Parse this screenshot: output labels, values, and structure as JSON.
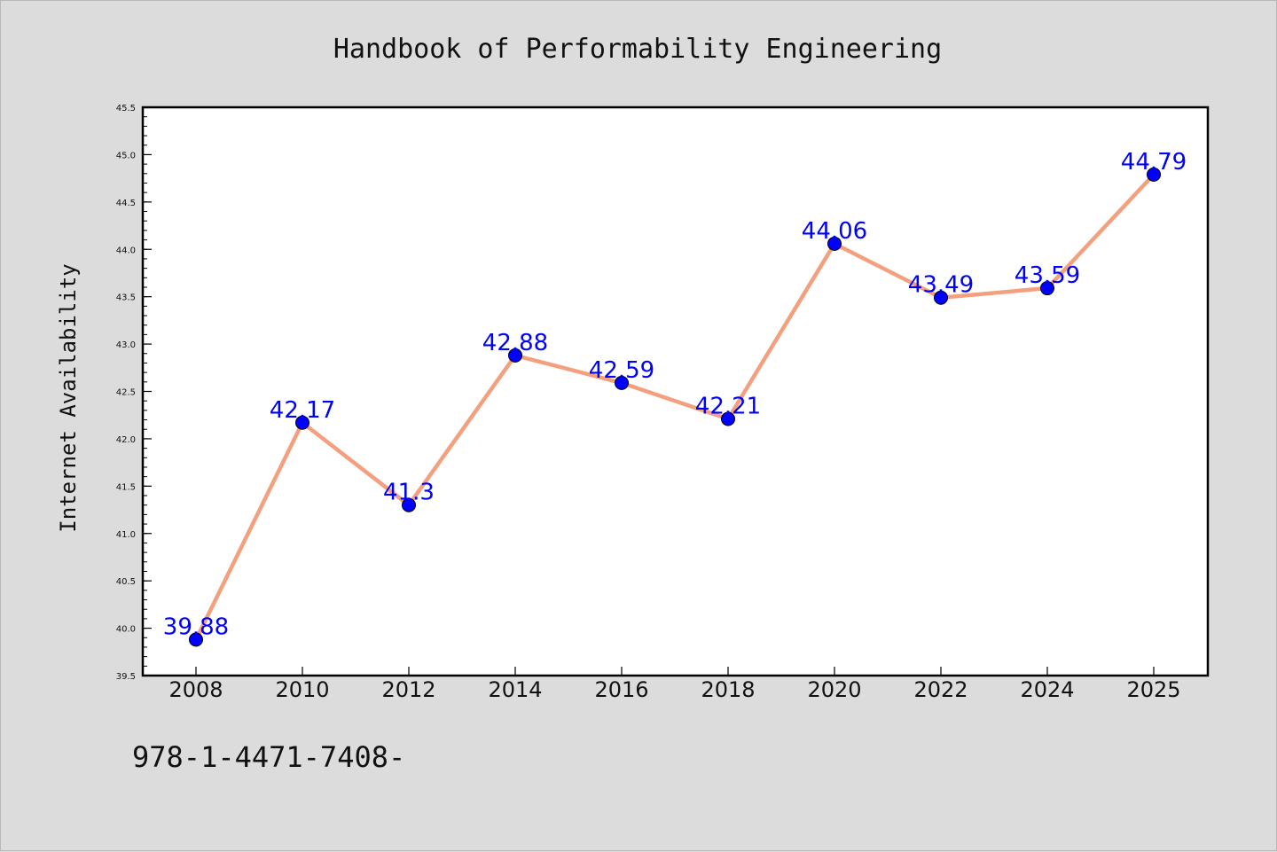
{
  "chart_data": {
    "type": "line",
    "title": "Handbook of Performability Engineering",
    "ylabel": "Internet Availability",
    "xlabel": "",
    "categories": [
      "2008",
      "2010",
      "2012",
      "2014",
      "2016",
      "2018",
      "2020",
      "2022",
      "2024",
      "2025"
    ],
    "values": [
      39.88,
      42.17,
      41.3,
      42.88,
      42.59,
      42.21,
      44.06,
      43.49,
      43.59,
      44.79
    ],
    "data_labels": [
      "39.88",
      "42.17",
      "41.3",
      "42.88",
      "42.59",
      "42.21",
      "44.06",
      "43.49",
      "43.59",
      "44.79"
    ],
    "ylim": [
      39.5,
      45.5
    ],
    "yticks": [
      "39.5",
      "40.0",
      "40.5",
      "41.0",
      "41.5",
      "42.0",
      "42.5",
      "43.0",
      "43.5",
      "44.0",
      "44.5",
      "45.0",
      "45.5"
    ],
    "grid": false,
    "colors": {
      "line": "#f4a07f",
      "marker": "#0000ff",
      "data_label": "#0000ff",
      "background": "#dcdcdc",
      "plot_background": "#ffffff"
    }
  },
  "footer": {
    "text": "978-1-4471-7408-"
  }
}
